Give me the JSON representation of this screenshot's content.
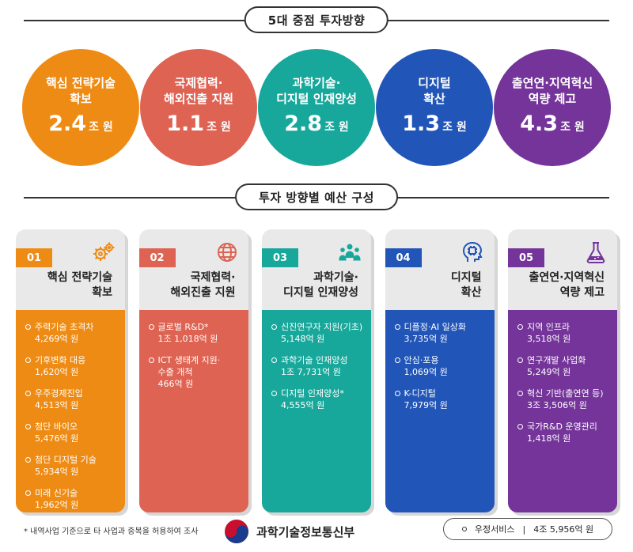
{
  "header1": "5대 중점 투자방향",
  "header2": "투자 방향별 예산 구성",
  "circles": [
    {
      "title": "핵심 전략기술\n확보",
      "amount": "2.4",
      "unit": "조 원",
      "color": "#ee8b14"
    },
    {
      "title": "국제협력·\n해외진출 지원",
      "amount": "1.1",
      "unit": "조 원",
      "color": "#de6353"
    },
    {
      "title": "과학기술·\n디지털 인재양성",
      "amount": "2.8",
      "unit": "조 원",
      "color": "#17a89b"
    },
    {
      "title": "디지털\n확산",
      "amount": "1.3",
      "unit": "조 원",
      "color": "#2155b8"
    },
    {
      "title": "출연연·지역혁신\n역량 제고",
      "amount": "4.3",
      "unit": "조 원",
      "color": "#74349a"
    }
  ],
  "cards": [
    {
      "num": "01",
      "icon": "gears-icon",
      "title": "핵심 전략기술\n확보",
      "color": "#ee8b14",
      "items": [
        {
          "name": "주력기술 초격차",
          "amount": "4,269억 원"
        },
        {
          "name": "기후변화 대응",
          "amount": "1,620억 원"
        },
        {
          "name": "우주경제진입",
          "amount": "4,513억 원"
        },
        {
          "name": "첨단 바이오",
          "amount": "5,476억 원"
        },
        {
          "name": "첨단 디지털 기술",
          "amount": "5,934억 원"
        },
        {
          "name": "미래 신기술",
          "amount": "1,962억 원"
        }
      ]
    },
    {
      "num": "02",
      "icon": "globe-icon",
      "title": "국제협력·\n해외진출 지원",
      "color": "#de6353",
      "items": [
        {
          "name": "글로벌 R&D*",
          "amount": "1조 1,018억 원"
        },
        {
          "name": "ICT 생태계 지원·\n수출 개척",
          "amount": "466억 원"
        }
      ]
    },
    {
      "num": "03",
      "icon": "people-icon",
      "title": "과학기술·\n디지털 인재양성",
      "color": "#17a89b",
      "items": [
        {
          "name": "신진연구자 지원(기초)",
          "amount": "5,148억 원"
        },
        {
          "name": "과학기술 인재양성",
          "amount": "1조 7,731억 원"
        },
        {
          "name": "디지털 인재양성*",
          "amount": "4,555억 원"
        }
      ]
    },
    {
      "num": "04",
      "icon": "ai-head-icon",
      "title": "디지털\n확산",
      "color": "#2155b8",
      "items": [
        {
          "name": "디플정·AI 일상화",
          "amount": "3,735억 원"
        },
        {
          "name": "안심·포용",
          "amount": "1,069억 원"
        },
        {
          "name": "K-디지털",
          "amount": "7,979억 원"
        }
      ]
    },
    {
      "num": "05",
      "icon": "flask-icon",
      "title": "출연연·지역혁신\n역량 제고",
      "color": "#74349a",
      "items": [
        {
          "name": "지역 인프라",
          "amount": "3,518억 원"
        },
        {
          "name": "연구개발 사업화",
          "amount": "5,249억 원"
        },
        {
          "name": "혁신 기반(출연연 등)",
          "amount": "3조 3,506억 원"
        },
        {
          "name": "국가R&D 운영관리",
          "amount": "1,418억 원"
        }
      ]
    }
  ],
  "footnote": "* 내역사업 기준으로 타 사업과 중복을 허용하여 조사",
  "ministry": "과학기술정보통신부",
  "summary": {
    "label": "우정서비스",
    "sep": "|",
    "amount": "4조 5,956억 원"
  }
}
